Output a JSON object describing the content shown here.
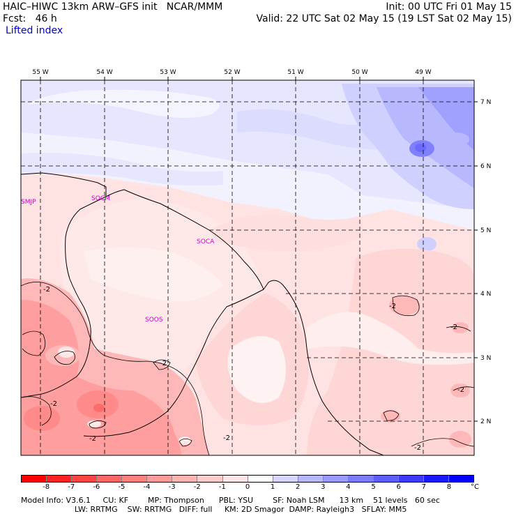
{
  "header": {
    "title": "HAIC–HIWC 13km ARW–GFS init   NCAR/MMM",
    "init": "Init: 00 UTC Fri 01 May 15",
    "fcst": "Fcst:   46 h",
    "valid": "Valid: 22 UTC Sat 02 May 15 (19 LST Sat 02 May 15)",
    "field": "Lifted index"
  },
  "lon_labels": [
    "55 W",
    "54 W",
    "53 W",
    "52 W",
    "51 W",
    "50 W",
    "49 W"
  ],
  "lat_labels": [
    "7 N",
    "6 N",
    "5 N",
    "4 N",
    "3 N",
    "2 N"
  ],
  "stations": [
    "SMJP",
    "SOCM",
    "SOCA",
    "SOOS"
  ],
  "contour_labels": [
    "-2",
    "-2",
    "-2",
    "-2",
    "-2",
    "-2",
    "-2",
    "-2",
    "-2"
  ],
  "colorbar": {
    "labels": [
      "-8",
      "-7",
      "-6",
      "-5",
      "-4",
      "-3",
      "-2",
      "-1",
      "0",
      "1",
      "2",
      "3",
      "4",
      "5",
      "6",
      "7",
      "8"
    ],
    "unit": "°C",
    "colors": [
      "#ff0000",
      "#ff2222",
      "#ff4444",
      "#ff6666",
      "#ff8080",
      "#ff9a9a",
      "#ffb4b4",
      "#ffcccc",
      "#ffe6e6",
      "#ffffff",
      "#d6d6ff",
      "#b8b8ff",
      "#9a9aff",
      "#7c7cff",
      "#5e5eff",
      "#3c3cff",
      "#1a1aff",
      "#0000ff"
    ]
  },
  "footer": {
    "line1": "Model Info: V3.6.1     CU: KF        MP: Thompson      PBL: YSU        SF: Noah LSM      13 km    51 levels   60 sec",
    "line2": "                      LW: RRTMG    SW: RRTMG   DIFF: full     KM: 2D Smagor  DAMP: Rayleigh3   SFLAY: MM5"
  },
  "colors": {
    "station": "#cc00cc",
    "field_label": "#0000cc",
    "grid": "#000000"
  }
}
